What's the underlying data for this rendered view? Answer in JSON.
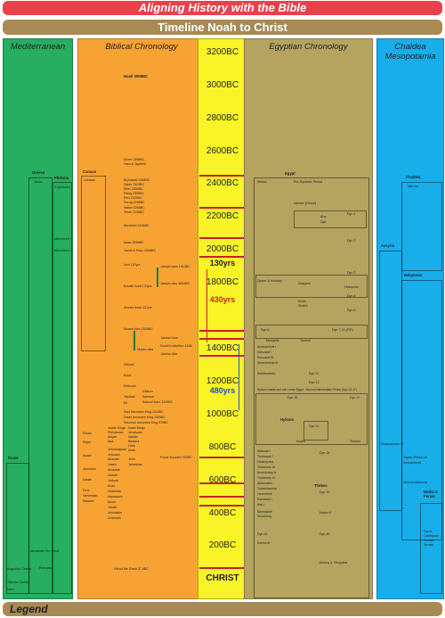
{
  "header": {
    "title": "Aligning History with the Bible",
    "subtitle": "Timeline Noah to Christ"
  },
  "columns": {
    "mediterranean": "Mediterranean",
    "biblical": "Biblical Chronology",
    "egyptian": "Egyptian Chronology",
    "chaldea": "Chaldea Mesopotamia"
  },
  "timeline": {
    "ticks": [
      "3200BC",
      "3000BC",
      "2800BC",
      "2600BC",
      "2400BC",
      "2200BC",
      "2000BC",
      "1800BC",
      "1400BC",
      "1200BC",
      "1000BC",
      "800BC",
      "600BC",
      "400BC",
      "200BC"
    ],
    "christ": "CHRIST",
    "spans": [
      "130yrs",
      "430yrs",
      "480yrs"
    ]
  },
  "mediterranean": {
    "greece": "Greece",
    "philistia": "Philistia",
    "rome": "Rome",
    "items": [
      "Javan",
      "Caphtorim",
      "Abimelech I",
      "Abimelech II",
      "Romulus",
      "Augustus Caesar",
      "Tiberius Caesar",
      "Nero",
      "Alexander the Great"
    ]
  },
  "biblical": {
    "noah": "Noah 3058BC",
    "canaan": "Canaan",
    "canaan_box": "Canaan",
    "patriarchs": [
      "Shem 2558BC",
      "Ham & Japheth",
      "Arphaxad 2458BC",
      "Salah 2423BC",
      "Eber 2393BC",
      "Peleg 2359BC",
      "Reu 2329BC",
      "Serug 2298BC",
      "Nahor 2268BC",
      "Terah 2238BC"
    ],
    "abraham": "Abraham 2166BC",
    "isaac": "Isaac 2066BC",
    "jacob": "Jacob & Esau 2006BC",
    "levi": "Levi 137yrs",
    "joseph": [
      "Joseph born 1914BC",
      "Joseph dies 1806BC"
    ],
    "kohath": "Kohath lived 133yrs",
    "amram": "Amram lived 137yrs",
    "moses": [
      "Moses born 1526BC",
      "Moses dies"
    ],
    "joshua": [
      "Joshua born",
      "Korah's rebellion 1426",
      "Joshua dies"
    ],
    "judges": [
      "Othniel",
      "Ehud",
      "Deborah",
      "Gideon",
      "Jephtah",
      "Samson",
      "Eli",
      "Samuel born 1100BC"
    ],
    "kings": [
      "Saul becomes King 1043BC",
      "David becomes King 1003BC",
      "Solomon becomes King 970BC"
    ],
    "divided": [
      "Judah Kings",
      "Israel Kings",
      "Rehoboam",
      "Jeroboam",
      "Abijah",
      "Nadab",
      "Asa",
      "Baasha",
      "Jehoshaphat",
      "Omri",
      "Ahab",
      "Jehoram",
      "Ahaziah",
      "Jehu",
      "Joash",
      "Jehoahaz",
      "Amaziah",
      "Uzziah",
      "Jotham",
      "Ahaz",
      "Hezekiah",
      "Manasseh",
      "Amon",
      "Josiah",
      "Jehoiakim",
      "Zedekiah"
    ],
    "prophets": [
      "Elisha",
      "Elijah",
      "Isaiah",
      "Jeremiah",
      "Daniel",
      "Ezra",
      "Nehemiah",
      "Malachi"
    ],
    "herod": "Herod the Great 37-4BC",
    "daniel_note": "Rome founded 753BC"
  },
  "egyptian": {
    "egypt": "Egypt",
    "entries": [
      "Menes",
      "Pre-Dynastic Period",
      "Narmer (Horus)",
      "Dyn 1",
      "Dyn 2",
      "Aha",
      "Djer",
      "Dyn 3",
      "Djoser & Imhotep",
      "Saqqara",
      "Dyn 4",
      "Khufu",
      "Khafre",
      "Dyn 5",
      "Dyn 6",
      "Dyn 7-10 (FIP)",
      "Heliopolis",
      "Memphis",
      "Thebes",
      "Amenemhat I",
      "Senusret I",
      "Senusret III",
      "Amenemhat III",
      "Sobekneferu",
      "Dyn 12",
      "Dyn 13",
      "Hyksos invade and rule Lower Egypt - Second Intermediate Period (Dyn 13-17)",
      "Dyn 15",
      "Dyn 17",
      "Hyksos",
      "Avaris",
      "Dyn 16",
      "Thebes",
      "Ahmose I",
      "Thutmose I",
      "Hatshepsut",
      "Thutmose III",
      "Amenhotep II",
      "Thutmose IV",
      "Akhenaten",
      "Tutankhamun",
      "Horemheb",
      "Rameses I",
      "Seti I",
      "Rameses II",
      "Merneptah",
      "Dyn 18",
      "Dyn 19",
      "Dyn 20",
      "Dyn 21",
      "Dyn 22",
      "Shoshenq",
      "Dyn 25",
      "Dyn 26",
      "Necho II",
      "Dyn 27",
      "Dyn 28",
      "Dyn 30",
      "Dyn 31",
      "Darius III",
      "Antony & Cleopatra"
    ]
  },
  "chaldea": {
    "chaldea": "Chaldea",
    "assyria": "Assyria",
    "babylonia": "Babylonia",
    "media": "Media & Persia",
    "items": [
      "Nimrod",
      "Shalmaneser III",
      "Tiglath-Pileser III",
      "Sennacherib",
      "Nebuchadnezzar",
      "Cyrus",
      "Cambyses",
      "Darius I",
      "Xerxes"
    ]
  },
  "legend": "Legend"
}
